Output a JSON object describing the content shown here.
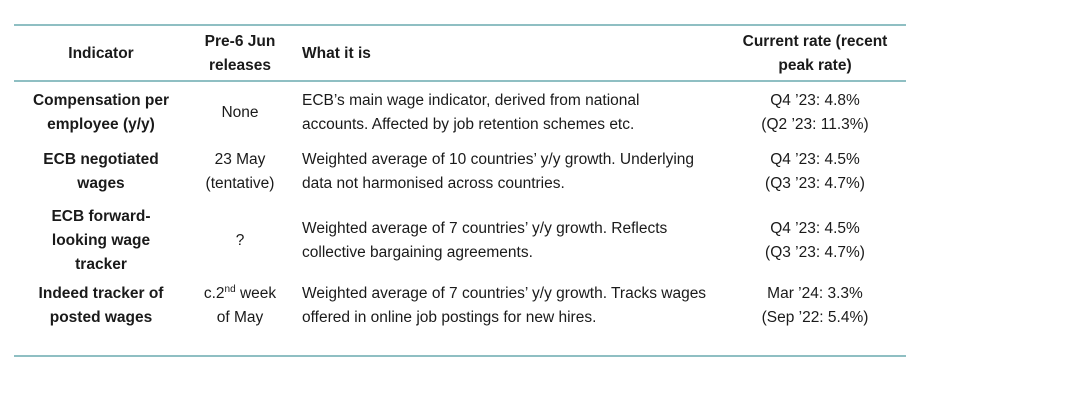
{
  "table": {
    "headers": {
      "indicator": "Indicator",
      "releases_line1": "Pre-6 Jun",
      "releases_line2": "releases",
      "what": "What it is",
      "rate_line1": "Current rate (recent",
      "rate_line2": "peak rate)"
    },
    "rows": [
      {
        "indicator_line1": "Compensation per",
        "indicator_line2": "employee (y/y)",
        "release": "None",
        "desc_line1": "ECB’s main wage indicator, derived from national",
        "desc_line2": "accounts. Affected by job retention schemes etc.",
        "rate_line1": "Q4 ’23: 4.8%",
        "rate_line2": "(Q2 ’23: 11.3%)"
      },
      {
        "indicator_line1": "ECB negotiated",
        "indicator_line2": "wages",
        "release_line1": "23 May",
        "release_line2": "(tentative)",
        "desc_line1": "Weighted average of 10 countries’ y/y growth. Underlying",
        "desc_line2": "data not harmonised across countries.",
        "rate_line1": "Q4 ’23: 4.5%",
        "rate_line2": "(Q3 ’23: 4.7%)"
      },
      {
        "indicator_line1": "ECB forward-",
        "indicator_line2": "looking wage",
        "indicator_line3": "tracker",
        "release": "?",
        "desc_line1": "Weighted average of 7 countries’ y/y growth. Reflects",
        "desc_line2": "collective bargaining agreements.",
        "rate_line1": "Q4 ’23: 4.5%",
        "rate_line2": "(Q3 ’23: 4.7%)"
      },
      {
        "indicator_line1": "Indeed tracker of",
        "indicator_line2": "posted wages",
        "release_prefix": "c.2",
        "release_sup": "nd",
        "release_suffix": " week",
        "release_line2": "of May",
        "desc_line1": "Weighted average of 7 countries’ y/y growth. Tracks wages",
        "desc_line2": "offered in online job postings for new hires.",
        "rate_line1": "Mar ’24: 3.3%",
        "rate_line2": "(Sep ’22: 5.4%)"
      }
    ]
  },
  "colors": {
    "rule": "#8fbfc3",
    "text": "#1a1a1a"
  }
}
